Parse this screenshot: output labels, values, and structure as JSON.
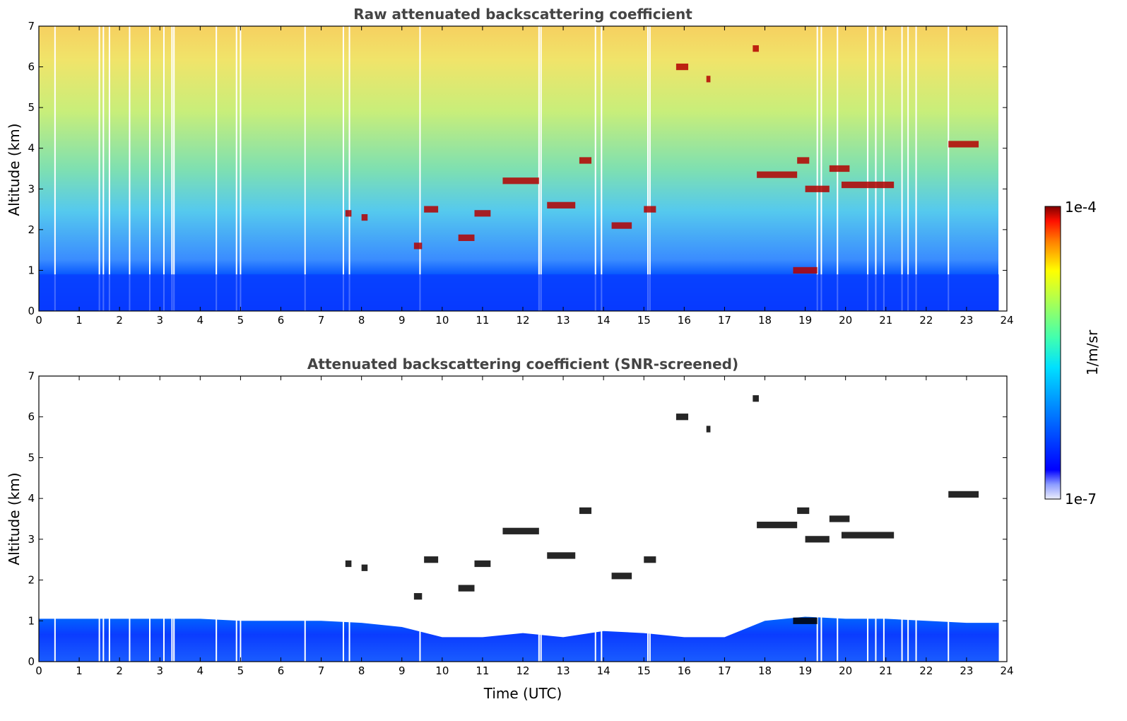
{
  "chart_data": [
    {
      "type": "heatmap",
      "title": "Raw attenuated backscattering coefficient",
      "xlabel": "",
      "ylabel": "Altitude (km)",
      "xlim": [
        0,
        24
      ],
      "ylim": [
        0,
        7
      ],
      "x_ticks": [
        "0",
        "1",
        "2",
        "3",
        "4",
        "5",
        "6",
        "7",
        "8",
        "9",
        "10",
        "11",
        "12",
        "13",
        "14",
        "15",
        "16",
        "17",
        "18",
        "19",
        "20",
        "21",
        "22",
        "23",
        "24"
      ],
      "y_ticks": [
        "0",
        "1",
        "2",
        "3",
        "4",
        "5",
        "6",
        "7"
      ],
      "data_end_hour": 23.8,
      "boundary_layer_top_km": 0.9,
      "data_gaps_hour": [
        0.4,
        1.5,
        1.6,
        1.75,
        2.25,
        2.75,
        3.1,
        3.3,
        3.35,
        4.4,
        4.9,
        5.0,
        6.6,
        7.55,
        7.7,
        9.45,
        12.4,
        12.45,
        13.8,
        13.95,
        15.1,
        15.15,
        19.3,
        19.4,
        19.8,
        20.55,
        20.75,
        20.95,
        21.4,
        21.55,
        21.75,
        22.55
      ],
      "cloud_features": [
        {
          "hour_start": 7.6,
          "hour_end": 7.75,
          "alt_km": 2.4
        },
        {
          "hour_start": 8.0,
          "hour_end": 8.15,
          "alt_km": 2.3
        },
        {
          "hour_start": 9.3,
          "hour_end": 9.5,
          "alt_km": 1.6
        },
        {
          "hour_start": 9.55,
          "hour_end": 9.9,
          "alt_km": 2.5
        },
        {
          "hour_start": 10.4,
          "hour_end": 10.8,
          "alt_km": 1.8
        },
        {
          "hour_start": 10.8,
          "hour_end": 11.2,
          "alt_km": 2.4
        },
        {
          "hour_start": 11.5,
          "hour_end": 12.4,
          "alt_km": 3.2
        },
        {
          "hour_start": 12.6,
          "hour_end": 13.3,
          "alt_km": 2.6
        },
        {
          "hour_start": 13.4,
          "hour_end": 13.7,
          "alt_km": 3.7
        },
        {
          "hour_start": 14.2,
          "hour_end": 14.7,
          "alt_km": 2.1
        },
        {
          "hour_start": 15.0,
          "hour_end": 15.3,
          "alt_km": 2.5
        },
        {
          "hour_start": 15.8,
          "hour_end": 16.1,
          "alt_km": 6.0
        },
        {
          "hour_start": 16.55,
          "hour_end": 16.65,
          "alt_km": 5.7
        },
        {
          "hour_start": 17.7,
          "hour_end": 17.85,
          "alt_km": 6.45
        },
        {
          "hour_start": 17.8,
          "hour_end": 18.8,
          "alt_km": 3.35
        },
        {
          "hour_start": 18.8,
          "hour_end": 19.1,
          "alt_km": 3.7
        },
        {
          "hour_start": 19.0,
          "hour_end": 19.6,
          "alt_km": 3.0
        },
        {
          "hour_start": 19.6,
          "hour_end": 20.1,
          "alt_km": 3.5
        },
        {
          "hour_start": 19.9,
          "hour_end": 21.2,
          "alt_km": 3.1
        },
        {
          "hour_start": 22.55,
          "hour_end": 23.3,
          "alt_km": 4.1
        },
        {
          "hour_start": 18.7,
          "hour_end": 19.3,
          "alt_km": 1.0
        }
      ]
    },
    {
      "type": "heatmap",
      "title": "Attenuated backscattering coefficient (SNR-screened)",
      "xlabel": "Time (UTC)",
      "ylabel": "Altitude (km)",
      "xlim": [
        0,
        24
      ],
      "ylim": [
        0,
        7
      ],
      "x_ticks": [
        "0",
        "1",
        "2",
        "3",
        "4",
        "5",
        "6",
        "7",
        "8",
        "9",
        "10",
        "11",
        "12",
        "13",
        "14",
        "15",
        "16",
        "17",
        "18",
        "19",
        "20",
        "21",
        "22",
        "23",
        "24"
      ],
      "y_ticks": [
        "0",
        "1",
        "2",
        "3",
        "4",
        "5",
        "6",
        "7"
      ],
      "boundary_layer_top_km": [
        [
          0,
          1.05
        ],
        [
          1,
          1.05
        ],
        [
          2,
          1.05
        ],
        [
          3,
          1.05
        ],
        [
          4,
          1.05
        ],
        [
          5,
          1.0
        ],
        [
          6,
          1.0
        ],
        [
          7,
          1.0
        ],
        [
          8,
          0.95
        ],
        [
          9,
          0.85
        ],
        [
          10,
          0.6
        ],
        [
          11,
          0.6
        ],
        [
          12,
          0.7
        ],
        [
          13,
          0.6
        ],
        [
          14,
          0.75
        ],
        [
          15,
          0.7
        ],
        [
          16,
          0.6
        ],
        [
          17,
          0.6
        ],
        [
          18,
          1.0
        ],
        [
          19,
          1.1
        ],
        [
          20,
          1.05
        ],
        [
          21,
          1.05
        ],
        [
          22,
          1.0
        ],
        [
          23,
          0.95
        ],
        [
          23.8,
          0.95
        ]
      ],
      "cloud_features": "same as raw panel"
    }
  ],
  "colorbar": {
    "label": "1/m/sr",
    "min_label": "1e-7",
    "max_label": "1e-4",
    "colormap": "jet"
  }
}
